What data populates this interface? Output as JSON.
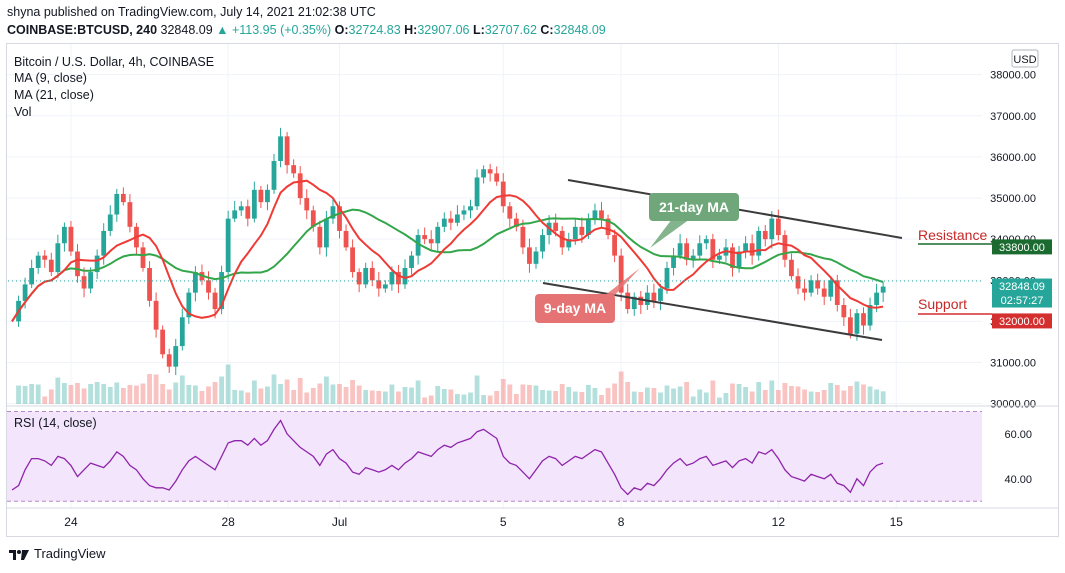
{
  "publish_line": "shyna published on TradingView.com, July 14, 2021 21:02:38 UTC",
  "symbol_line": {
    "symbol": "COINBASE:BTCUSD, 240",
    "last": "32848.09",
    "change": "▲ +113.95 (+0.35%)",
    "o_label": "O:",
    "o": "32724.83",
    "h_label": "H:",
    "h": "32907.06",
    "l_label": "L:",
    "l": "32707.62",
    "c_label": "C:",
    "c": "32848.09"
  },
  "legend": {
    "title": "Bitcoin / U.S. Dollar, 4h, COINBASE",
    "ma9": "MA (9, close)",
    "ma21": "MA (21, close)",
    "vol": "Vol"
  },
  "currency": "USD",
  "annotations": {
    "ma21_label": "21-day MA",
    "ma9_label": "9-day MA",
    "resistance": "Resistance",
    "support": "Support"
  },
  "colors": {
    "up": "#26a69a",
    "down": "#ef5350",
    "ma9": "#ef3b36",
    "ma21": "#33a64a",
    "rsi": "#8e24aa",
    "rsi_band": "#f3e5fb",
    "resistance_badge": "#1b6a2f",
    "support_badge": "#d32f2f"
  },
  "footer": {
    "brand": "TradingView",
    "logo_icon": "tradingview-logo-icon"
  },
  "chart_data": {
    "type": "candlestick",
    "ylim": [
      29700,
      38600
    ],
    "yticks": [
      30000,
      31000,
      32000,
      33000,
      34000,
      35000,
      36000,
      37000,
      38000
    ],
    "ytick_labels": [
      "30000.00",
      "31000.00",
      "32000.00",
      "33000.00",
      "34000.00",
      "35000.00",
      "36000.00",
      "37000.00",
      "38000.00"
    ],
    "xtick_labels": [
      "24",
      "28",
      "Jul",
      "5",
      "8",
      "12",
      "15"
    ],
    "xtick_index": [
      9,
      33,
      50,
      75,
      93,
      117,
      135
    ],
    "price_badges": [
      {
        "label": "33800.00",
        "value": 33800,
        "kind": "resistance"
      },
      {
        "label": "32848.09",
        "value": 32848.09,
        "kind": "last"
      },
      {
        "label": "02:57:27",
        "value": 32848.09,
        "kind": "countdown"
      },
      {
        "label": "32000.00",
        "value": 32000,
        "kind": "support"
      }
    ],
    "close": [
      32000,
      32500,
      32900,
      33300,
      33600,
      33500,
      33200,
      33900,
      34300,
      33700,
      33100,
      32800,
      33200,
      33600,
      34200,
      34600,
      35100,
      34900,
      34300,
      33800,
      33300,
      32500,
      31800,
      31200,
      30900,
      31400,
      32100,
      32700,
      33200,
      33000,
      32700,
      32300,
      33200,
      34500,
      34700,
      34800,
      34500,
      35200,
      34900,
      35200,
      35900,
      36500,
      35800,
      35600,
      35000,
      34700,
      34300,
      33800,
      34500,
      34800,
      34200,
      33800,
      33200,
      32900,
      33300,
      33000,
      32800,
      32900,
      33200,
      32900,
      33300,
      33600,
      34100,
      34000,
      33900,
      34300,
      34500,
      34400,
      34600,
      34700,
      34800,
      35500,
      35700,
      35600,
      35400,
      34800,
      34500,
      34300,
      33800,
      33400,
      33700,
      34100,
      34400,
      34200,
      33800,
      34000,
      34300,
      34100,
      34500,
      34700,
      34500,
      34100,
      33600,
      32700,
      32300,
      32600,
      32400,
      32700,
      32500,
      32800,
      33300,
      33600,
      33900,
      33500,
      33600,
      33900,
      34000,
      33500,
      33600,
      33800,
      33300,
      33700,
      33900,
      33600,
      34200,
      34000,
      34500,
      34100,
      33500,
      33100,
      32800,
      32700,
      33000,
      32800,
      32600,
      33000,
      32400,
      32100,
      31700,
      32200,
      31900,
      32400,
      32700,
      32848
    ]
  },
  "rsi": {
    "label": "RSI (14, close)",
    "ylim": [
      27,
      72
    ],
    "yticks": [
      40,
      60
    ],
    "ytick_labels": [
      "40.00",
      "60.00"
    ],
    "upper": 70,
    "lower": 30,
    "values": [
      35,
      37,
      44,
      49,
      49,
      48,
      46,
      50,
      49,
      46,
      41,
      44,
      47,
      46,
      45,
      48,
      52,
      50,
      46,
      44,
      40,
      37,
      36,
      36,
      35,
      39,
      44,
      48,
      50,
      48,
      46,
      44,
      50,
      56,
      57,
      57,
      55,
      58,
      55,
      57,
      62,
      66,
      60,
      57,
      54,
      52,
      50,
      46,
      51,
      53,
      49,
      47,
      43,
      42,
      45,
      44,
      43,
      44,
      46,
      44,
      47,
      49,
      52,
      51,
      50,
      53,
      55,
      54,
      56,
      57,
      58,
      61,
      62,
      60,
      58,
      50,
      47,
      46,
      43,
      40,
      44,
      48,
      50,
      49,
      46,
      48,
      50,
      49,
      51,
      53,
      52,
      47,
      42,
      36,
      33,
      36,
      35,
      38,
      37,
      40,
      44,
      47,
      49,
      46,
      47,
      49,
      50,
      46,
      47,
      48,
      45,
      48,
      49,
      47,
      52,
      51,
      53,
      49,
      44,
      41,
      40,
      39,
      42,
      41,
      40,
      42,
      38,
      37,
      34,
      40,
      37,
      43,
      46,
      47
    ]
  }
}
